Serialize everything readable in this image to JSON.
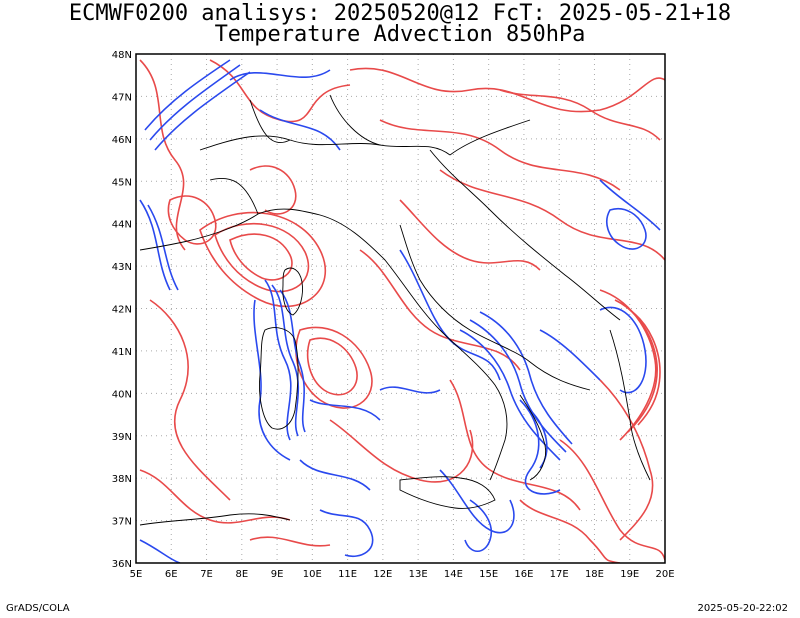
{
  "title_line1": "ECMWF0200 analisys: 20250520@12 FcT: 2025-05-21+18",
  "title_line2": "Temperature Advection 850hPa",
  "footer_left": "GrADS/COLA",
  "footer_right": "2025-05-20-22:02",
  "map": {
    "lon_range": [
      5,
      20
    ],
    "lat_range": [
      36,
      48
    ],
    "lon_ticks": [
      "5E",
      "6E",
      "7E",
      "8E",
      "9E",
      "10E",
      "11E",
      "12E",
      "13E",
      "14E",
      "15E",
      "16E",
      "17E",
      "18E",
      "19E",
      "20E"
    ],
    "lat_ticks": [
      "36N",
      "37N",
      "38N",
      "39N",
      "40N",
      "41N",
      "42N",
      "43N",
      "44N",
      "45N",
      "46N",
      "47N",
      "48N"
    ],
    "colors": {
      "warm_advection": "#e84a4a",
      "cold_advection": "#2a49ee",
      "coast": "#000000",
      "grid": "#aaaaaa"
    }
  }
}
